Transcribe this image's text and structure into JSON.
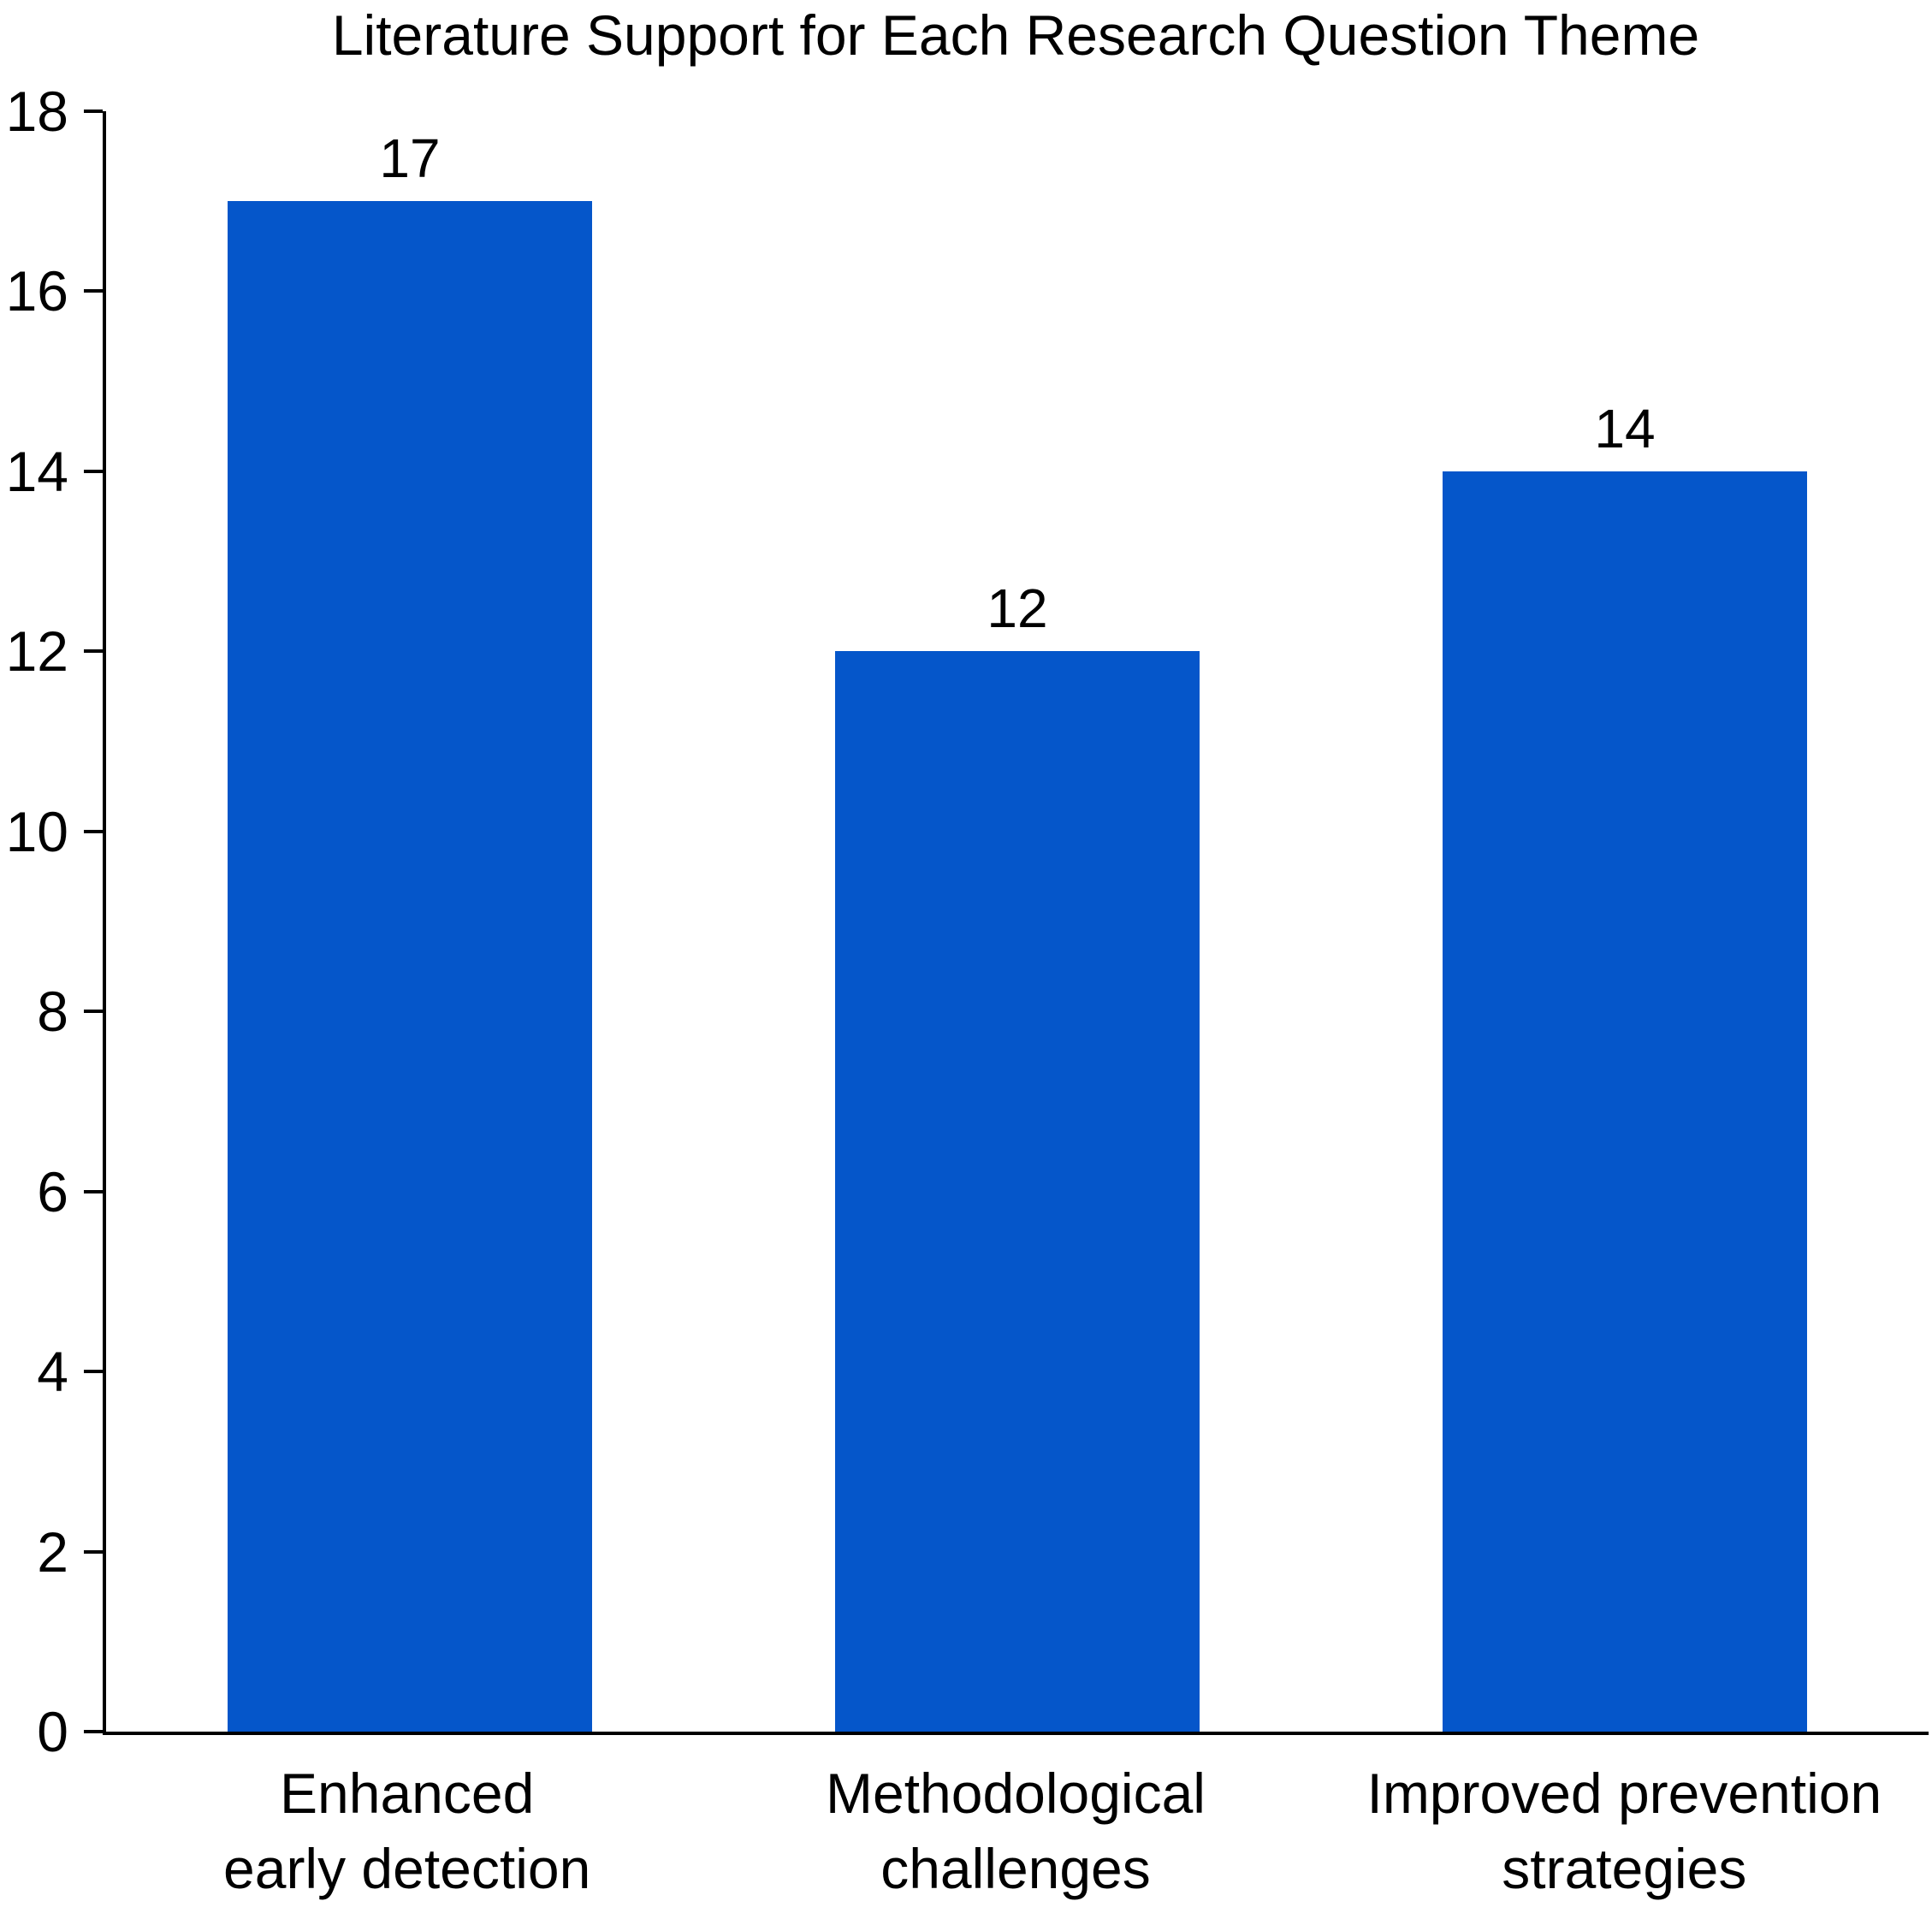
{
  "chart_data": {
    "type": "bar",
    "title": "Literature Support for Each Research Question Theme",
    "categories": [
      "Enhanced\nearly detection",
      "Methodological\nchallenges",
      "Improved prevention\nstrategies"
    ],
    "values": [
      17,
      12,
      14
    ],
    "bar_value_labels": [
      "17",
      "12",
      "14"
    ],
    "xlabel": "",
    "ylabel": "",
    "ylim": [
      0,
      18
    ],
    "yticks": [
      0,
      2,
      4,
      6,
      8,
      10,
      12,
      14,
      16,
      18
    ],
    "grid": false,
    "legend": null,
    "colors": {
      "bar": "#0556CA",
      "axis": "#000000",
      "text": "#000000"
    }
  }
}
